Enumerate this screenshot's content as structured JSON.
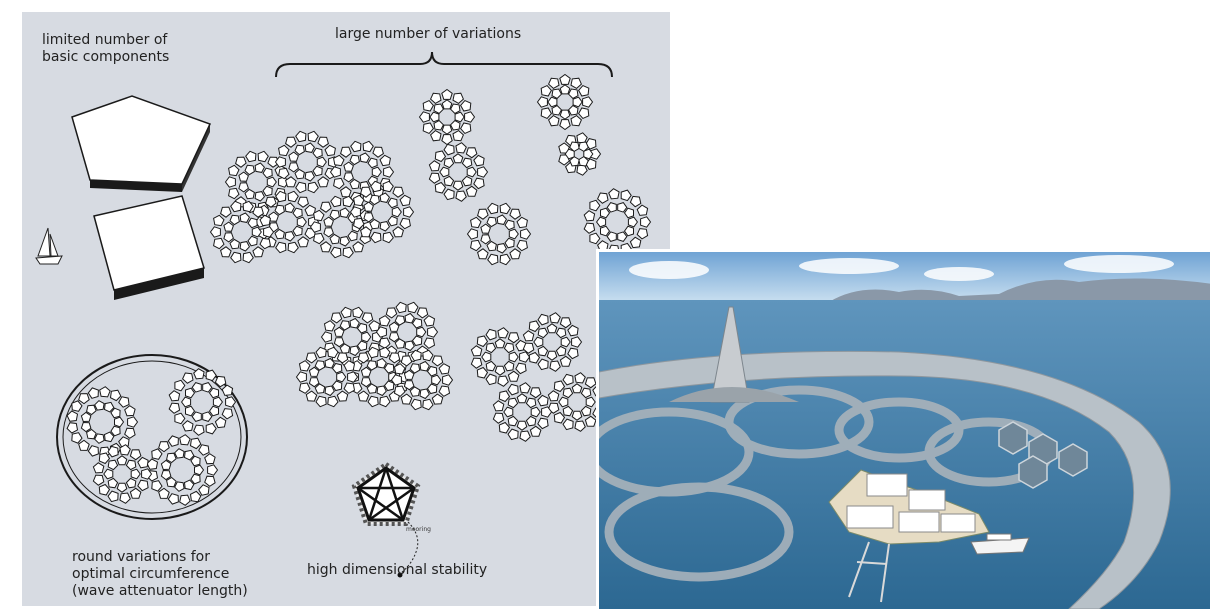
{
  "diagram": {
    "label_components": "limited number of\nbasic components",
    "label_variations": "large number of variations",
    "label_round": "round variations for\noptimal circumference\n(wave attenuator length)",
    "label_stability": "high dimensional stability",
    "label_mooring": "mooring",
    "colors": {
      "background": "#d7dbe2",
      "module_fill": "#ffffff",
      "stroke": "#1a1a1a"
    }
  },
  "photo": {
    "colors": {
      "sky": "#a9c9e4",
      "sea": "#3f7aa6",
      "mountains": "#9aa7b5",
      "breakwater": "#bfc7cd"
    }
  }
}
